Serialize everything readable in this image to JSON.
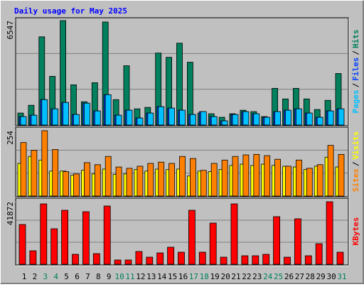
{
  "separator": "/",
  "chart_data": [
    {
      "type": "bar",
      "title": "Daily usage for May 2025",
      "ylim": [
        0,
        6547
      ],
      "yticks": [
        6547
      ],
      "series": [
        {
          "name": "Hits",
          "color": "#00805c",
          "values": [
            752,
            1239,
            5530,
            3052,
            6547,
            2521,
            1460,
            2654,
            6459,
            1593,
            3716,
            1017,
            1106,
            4512,
            4247,
            5131,
            3937,
            752,
            708,
            487,
            708,
            929,
            840,
            531,
            2300,
            1637,
            2300,
            1637,
            973,
            1548,
            3229
          ]
        },
        {
          "name": "Files",
          "color": "#0040ff",
          "values": [
            531,
            619,
            1593,
            1017,
            1416,
            664,
            1371,
            885,
            1902,
            619,
            929,
            442,
            752,
            1150,
            1062,
            929,
            664,
            840,
            531,
            265,
            664,
            840,
            708,
            487,
            840,
            929,
            1017,
            752,
            487,
            885,
            1017
          ]
        },
        {
          "name": "Pages",
          "color": "#00c0ff",
          "values": [
            531,
            619,
            1593,
            1017,
            1416,
            664,
            1371,
            885,
            1902,
            619,
            929,
            442,
            752,
            1150,
            1062,
            929,
            664,
            840,
            531,
            265,
            664,
            840,
            708,
            487,
            840,
            929,
            1017,
            752,
            487,
            885,
            1017
          ]
        }
      ]
    },
    {
      "type": "bar",
      "ylim": [
        0,
        254
      ],
      "yticks": [
        254
      ],
      "series": [
        {
          "name": "Visits",
          "color": "#ffff00",
          "values": [
            127,
            154,
            140,
            97,
            97,
            81,
            100,
            86,
            105,
            84,
            86,
            103,
            97,
            105,
            103,
            105,
            78,
            97,
            95,
            103,
            119,
            124,
            119,
            124,
            119,
            116,
            113,
            103,
            116,
            151,
            113
          ]
        },
        {
          "name": "Sites",
          "color": "#ff8000",
          "values": [
            208,
            178,
            254,
            181,
            95,
            86,
            130,
            122,
            154,
            113,
            108,
            116,
            127,
            132,
            127,
            154,
            146,
            100,
            127,
            140,
            154,
            160,
            162,
            157,
            143,
            116,
            140,
            108,
            122,
            197,
            162
          ]
        }
      ]
    },
    {
      "type": "bar",
      "ylim": [
        0,
        41872
      ],
      "yticks": [
        41872
      ],
      "categories": [
        "1",
        "2",
        "3",
        "4",
        "5",
        "6",
        "7",
        "8",
        "9",
        "10",
        "11",
        "12",
        "13",
        "14",
        "15",
        "16",
        "17",
        "18",
        "19",
        "20",
        "21",
        "22",
        "23",
        "24",
        "25",
        "26",
        "27",
        "28",
        "29",
        "30",
        "31"
      ],
      "category_colors": [
        "#000000",
        "#000000",
        "#00805c",
        "#00805c",
        "#000000",
        "#000000",
        "#000000",
        "#000000",
        "#000000",
        "#00805c",
        "#00805c",
        "#000000",
        "#000000",
        "#000000",
        "#000000",
        "#000000",
        "#00805c",
        "#00805c",
        "#000000",
        "#000000",
        "#000000",
        "#000000",
        "#000000",
        "#00805c",
        "#00805c",
        "#000000",
        "#000000",
        "#000000",
        "#000000",
        "#000000",
        "#00805c"
      ],
      "series": [
        {
          "name": "KBytes",
          "color": "#ff0000",
          "values": [
            26645,
            9040,
            40445,
            23791,
            36163,
            6661,
            35211,
            7137,
            39017,
            2855,
            2855,
            8565,
            4758,
            7613,
            11420,
            8089,
            36163,
            8089,
            27597,
            4758,
            40445,
            5710,
            5710,
            6661,
            31880,
            4758,
            30452,
            5710,
            13799,
            41872,
            8089
          ]
        }
      ]
    }
  ]
}
